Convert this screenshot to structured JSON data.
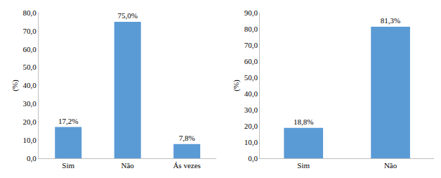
{
  "chart_data": [
    {
      "type": "bar",
      "categories": [
        "Sim",
        "Não",
        "Ás vezes"
      ],
      "values": [
        17.2,
        75.0,
        7.8
      ],
      "value_labels": [
        "17,2%",
        "75,0%",
        "7,8%"
      ],
      "data_labels": true,
      "color": "#5b9bd5",
      "y_label": "(%)",
      "ylim": [
        0,
        80
      ],
      "yticks": [
        {
          "value": 0,
          "label": "0,0"
        },
        {
          "value": 10,
          "label": "10,0"
        },
        {
          "value": 20,
          "label": "20,0"
        },
        {
          "value": 30,
          "label": "30,0"
        },
        {
          "value": 40,
          "label": "40,0"
        },
        {
          "value": 50,
          "label": "50,0"
        },
        {
          "value": 60,
          "label": "60,0"
        },
        {
          "value": 70,
          "label": "70,0"
        },
        {
          "value": 80,
          "label": "80,0"
        }
      ],
      "grid": false
    },
    {
      "type": "bar",
      "categories": [
        "Sim",
        "Não"
      ],
      "values": [
        18.8,
        81.3
      ],
      "value_labels": [
        "18,8%",
        "81,3%"
      ],
      "data_labels": true,
      "color": "#5b9bd5",
      "y_label": "(%)",
      "ylim": [
        0,
        90
      ],
      "yticks": [
        {
          "value": 0,
          "label": "0,0"
        },
        {
          "value": 10,
          "label": "10,0"
        },
        {
          "value": 20,
          "label": "20,0"
        },
        {
          "value": 30,
          "label": "30,0"
        },
        {
          "value": 40,
          "label": "40,0"
        },
        {
          "value": 50,
          "label": "50,0"
        },
        {
          "value": 60,
          "label": "60,0"
        },
        {
          "value": 70,
          "label": "70,0"
        },
        {
          "value": 80,
          "label": "80,0"
        },
        {
          "value": 90,
          "label": "90,0"
        }
      ],
      "grid": false
    }
  ]
}
